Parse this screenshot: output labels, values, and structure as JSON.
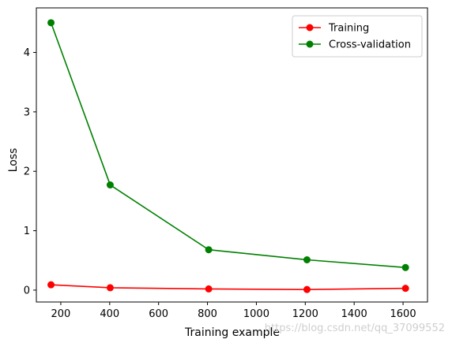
{
  "chart_data": {
    "type": "line",
    "xlabel": "Training example",
    "ylabel": "Loss",
    "xlim": [
      100,
      1700
    ],
    "ylim": [
      -0.2,
      4.75
    ],
    "xticks": [
      200,
      400,
      600,
      800,
      1000,
      1200,
      1400,
      1600
    ],
    "yticks": [
      0,
      1,
      2,
      3,
      4
    ],
    "grid": false,
    "legend_position": "top-right",
    "series": [
      {
        "name": "Training",
        "color": "#ff0000",
        "marker": "circle",
        "x": [
          160,
          402,
          805,
          1207,
          1610
        ],
        "y": [
          0.09,
          0.04,
          0.02,
          0.01,
          0.03
        ]
      },
      {
        "name": "Cross-validation",
        "color": "#008000",
        "marker": "circle",
        "x": [
          160,
          402,
          805,
          1207,
          1610
        ],
        "y": [
          4.5,
          1.77,
          0.68,
          0.51,
          0.38
        ]
      }
    ]
  },
  "watermark": "https://blog.csdn.net/qq_37099552"
}
